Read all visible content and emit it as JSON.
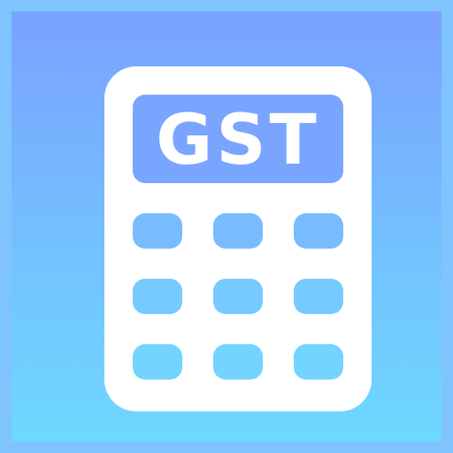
{
  "icon": {
    "display_text": "GST",
    "colors": {
      "background_top": "#7aa1ff",
      "background_bottom": "#6ed8ff",
      "border": "#7fc4ff",
      "body": "#ffffff",
      "display": "#7aa5ff",
      "keys_top": "#79bbff",
      "keys_bottom": "#72d4ff"
    },
    "keypad": {
      "rows": 3,
      "columns": 3
    }
  }
}
